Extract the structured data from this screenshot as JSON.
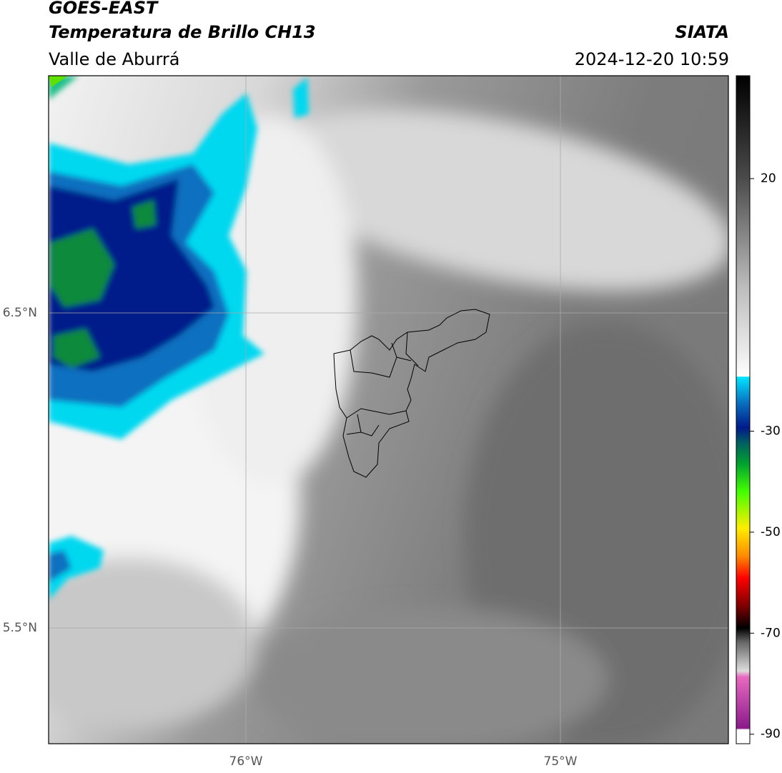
{
  "header": {
    "title": "GOES-EAST",
    "subtitle": "Temperatura de Brillo CH13",
    "region": "Valle de Aburrá",
    "source": "SIATA",
    "datetime": "2024-12-20 10:59"
  },
  "map": {
    "lat_labels": [
      "6.5°N",
      "5.5°N"
    ],
    "lon_labels": [
      "76°W",
      "75°W"
    ]
  },
  "colorbar": {
    "ticks": [
      20,
      -30,
      -50,
      -70,
      -90
    ]
  }
}
